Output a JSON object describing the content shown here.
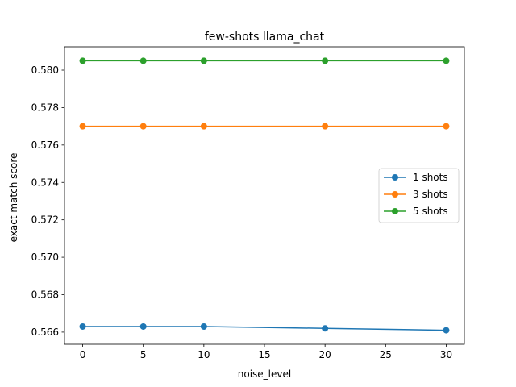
{
  "chart_data": {
    "type": "line",
    "title": "few-shots llama_chat",
    "xlabel": "noise_level",
    "ylabel": "exact match score",
    "x": [
      0,
      5,
      10,
      20,
      30
    ],
    "xlim": [
      -1.5,
      31.5
    ],
    "ylim": [
      0.56535,
      0.58125
    ],
    "x_ticks": [
      0,
      5,
      10,
      15,
      20,
      25,
      30
    ],
    "x_tick_labels": [
      "0",
      "5",
      "10",
      "15",
      "20",
      "25",
      "30"
    ],
    "y_ticks": [
      0.566,
      0.568,
      0.57,
      0.572,
      0.574,
      0.576,
      0.578,
      0.58
    ],
    "y_tick_labels": [
      "0.566",
      "0.568",
      "0.570",
      "0.572",
      "0.574",
      "0.576",
      "0.578",
      "0.580"
    ],
    "grid": false,
    "legend_position": "center-right",
    "series": [
      {
        "name": "1 shots",
        "color": "#1f77b4",
        "values": [
          0.5663,
          0.5663,
          0.5663,
          0.5662,
          0.5661
        ]
      },
      {
        "name": "3 shots",
        "color": "#ff7f0e",
        "values": [
          0.577,
          0.577,
          0.577,
          0.577,
          0.577
        ]
      },
      {
        "name": "5 shots",
        "color": "#2ca02c",
        "values": [
          0.5805,
          0.5805,
          0.5805,
          0.5805,
          0.5805
        ]
      }
    ]
  }
}
